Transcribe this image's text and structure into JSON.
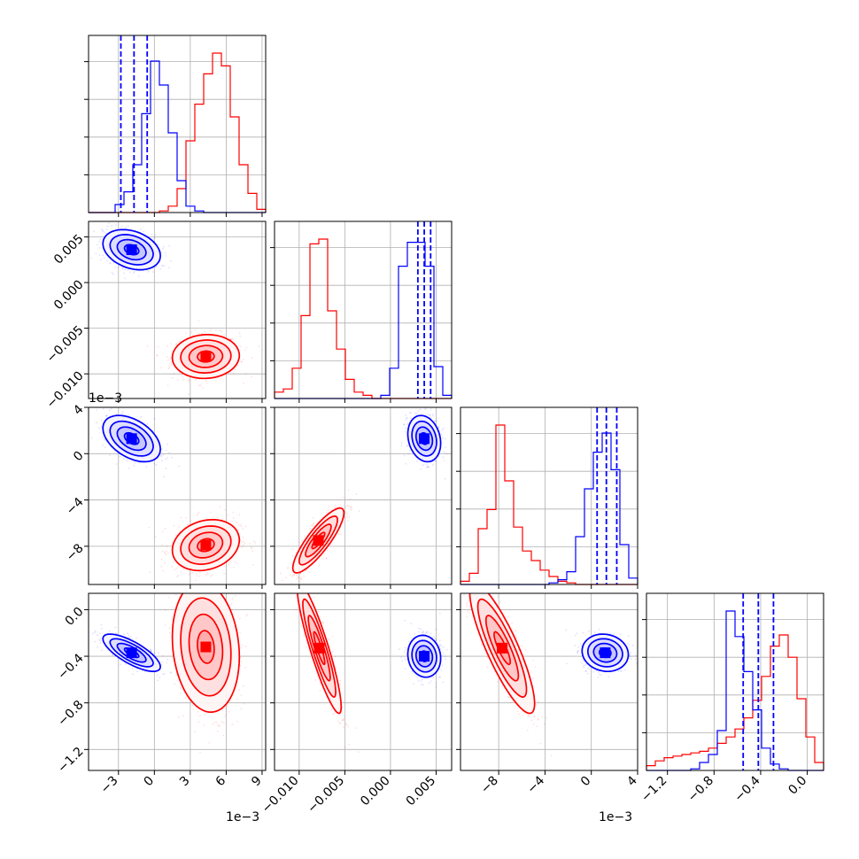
{
  "chart_data": {
    "type": "corner",
    "colors": {
      "series_a": "#0000ff",
      "series_b": "#ff0000"
    },
    "grid": true,
    "axis_labels_x": [
      "−3",
      "0",
      "3",
      "6",
      "9"
    ],
    "params": [
      {
        "range": [
          -0.0055,
          0.0093
        ],
        "ticks": [
          -0.003,
          0,
          0.003,
          0.006,
          0.009
        ],
        "tick_labels": [
          "−3",
          "0",
          "3",
          "6",
          "9"
        ],
        "offset_label": "1e−3",
        "quantiles": [
          -0.0028,
          -0.0017,
          -0.0006
        ]
      },
      {
        "range": [
          -0.0127,
          0.0067
        ],
        "ticks": [
          -0.01,
          -0.005,
          0.0,
          0.005
        ],
        "tick_labels": [
          "−0.010",
          "−0.005",
          "0.000",
          "0.005"
        ],
        "offset_label": "",
        "quantiles": [
          0.003,
          0.0037,
          0.0044
        ]
      },
      {
        "range": [
          -0.0113,
          0.004
        ],
        "ticks": [
          -0.008,
          -0.004,
          0.0,
          0.004
        ],
        "tick_labels": [
          "−8",
          "−4",
          "0",
          "4"
        ],
        "offset_label": "1e−3",
        "quantiles": [
          0.0005,
          0.0013,
          0.0022
        ]
      },
      {
        "range": [
          -1.38,
          0.14
        ],
        "ticks": [
          -1.2,
          -0.8,
          -0.4,
          0.0
        ],
        "tick_labels": [
          "−1.2",
          "−0.8",
          "−0.4",
          "0.0"
        ],
        "offset_label": "",
        "quantiles": [
          -0.55,
          -0.42,
          -0.29
        ]
      }
    ],
    "histograms": [
      {
        "param": 0,
        "series_a": [
          0,
          0,
          0,
          0.05,
          0.13,
          0.3,
          0.62,
          0.95,
          0.8,
          0.5,
          0.2,
          0.04,
          0.01,
          0,
          0,
          0,
          0,
          0,
          0,
          0
        ],
        "series_b": [
          0,
          0,
          0,
          0,
          0,
          0,
          0,
          0,
          0.01,
          0.04,
          0.15,
          0.45,
          0.68,
          0.87,
          1.0,
          0.92,
          0.6,
          0.3,
          0.12,
          0.02
        ]
      },
      {
        "param": 1,
        "series_a": [
          0,
          0,
          0,
          0,
          0,
          0,
          0,
          0,
          0,
          0,
          0,
          0,
          0.02,
          0.19,
          0.83,
          0.98,
          0.98,
          0.83,
          0.2,
          0.02
        ],
        "series_b": [
          0.04,
          0.06,
          0.19,
          0.52,
          0.97,
          1.0,
          0.55,
          0.31,
          0.12,
          0.04,
          0.02,
          0,
          0,
          0,
          0,
          0,
          0,
          0,
          0,
          0
        ]
      },
      {
        "param": 2,
        "series_a": [
          0,
          0,
          0,
          0,
          0,
          0,
          0,
          0,
          0,
          0,
          0.01,
          0.03,
          0.08,
          0.3,
          0.6,
          0.83,
          0.95,
          0.72,
          0.25,
          0.04
        ],
        "series_b": [
          0.02,
          0.07,
          0.35,
          0.47,
          1.0,
          0.65,
          0.36,
          0.21,
          0.15,
          0.09,
          0.05,
          0.02,
          0.01,
          0,
          0,
          0,
          0,
          0,
          0,
          0
        ]
      },
      {
        "param": 3,
        "series_a": [
          0,
          0,
          0,
          0,
          0,
          0.01,
          0.05,
          0.1,
          0.25,
          1.0,
          0.84,
          0.62,
          0.38,
          0.14,
          0.04,
          0.01,
          0,
          0,
          0,
          0
        ],
        "series_b": [
          0.03,
          0.06,
          0.08,
          0.09,
          0.1,
          0.11,
          0.12,
          0.14,
          0.17,
          0.21,
          0.26,
          0.33,
          0.44,
          0.59,
          0.78,
          0.85,
          0.71,
          0.45,
          0.21,
          0.05
        ]
      }
    ],
    "pairs": [
      {
        "x": 0,
        "y": 1,
        "series_a": {
          "mean": [
            -0.0019,
            0.0036
          ],
          "sd": [
            0.0012,
            0.0011
          ],
          "rho": -0.3
        },
        "series_b": {
          "mean": [
            0.0043,
            -0.0081
          ],
          "sd": [
            0.0014,
            0.0012
          ],
          "rho": 0.05
        }
      },
      {
        "x": 0,
        "y": 2,
        "series_a": {
          "mean": [
            -0.0019,
            0.0013
          ],
          "sd": [
            0.0012,
            0.001
          ],
          "rho": -0.45
        },
        "series_b": {
          "mean": [
            0.0043,
            -0.0079
          ],
          "sd": [
            0.0014,
            0.0011
          ],
          "rho": 0.2
        }
      },
      {
        "x": 1,
        "y": 2,
        "series_a": {
          "mean": [
            0.0037,
            0.0013
          ],
          "sd": [
            0.0009,
            0.001
          ],
          "rho": -0.2
        },
        "series_b": {
          "mean": [
            -0.0079,
            -0.0075
          ],
          "sd": [
            0.0014,
            0.0014
          ],
          "rho": 0.85
        }
      },
      {
        "x": 0,
        "y": 3,
        "series_a": {
          "mean": [
            -0.0019,
            -0.37
          ],
          "sd": [
            0.0012,
            0.08
          ],
          "rho": -0.75
        },
        "series_b": {
          "mean": [
            0.0043,
            -0.32
          ],
          "sd": [
            0.0014,
            0.28
          ],
          "rho": -0.15
        }
      },
      {
        "x": 1,
        "y": 3,
        "series_a": {
          "mean": [
            0.0037,
            -0.4
          ],
          "sd": [
            0.0009,
            0.09
          ],
          "rho": -0.1
        },
        "series_b": {
          "mean": [
            -0.0078,
            -0.33
          ],
          "sd": [
            0.0012,
            0.28
          ],
          "rho": -0.9
        }
      },
      {
        "x": 2,
        "y": 3,
        "series_a": {
          "mean": [
            0.0012,
            -0.37
          ],
          "sd": [
            0.001,
            0.08
          ],
          "rho": -0.1
        },
        "series_b": {
          "mean": [
            -0.0077,
            -0.33
          ],
          "sd": [
            0.0014,
            0.28
          ],
          "rho": -0.85
        }
      }
    ]
  }
}
